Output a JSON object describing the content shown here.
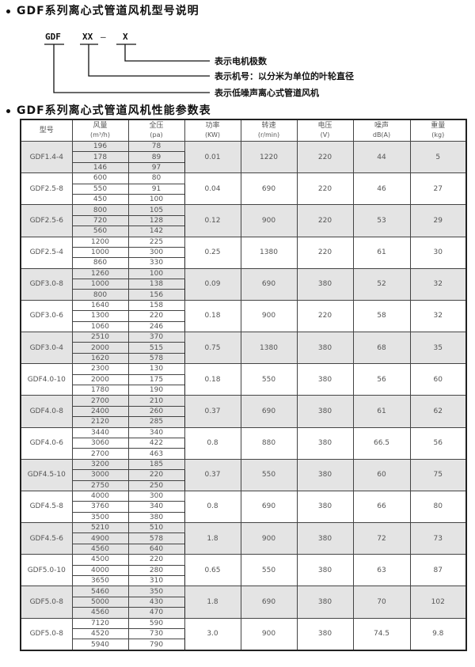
{
  "model_explanation": {
    "title": "GDF系列离心式管道风机型号说明",
    "code_parts": [
      "GDF",
      "XX",
      "—",
      "X"
    ],
    "labels": [
      "表示电机极数",
      "表示机号：以分米为单位的叶轮直径",
      "表示低噪声离心式管道风机"
    ]
  },
  "performance_table": {
    "title": "GDF系列离心式管道风机性能参数表",
    "headers": [
      {
        "name": "型号",
        "unit": ""
      },
      {
        "name": "风量",
        "unit": "(m³/h)"
      },
      {
        "name": "全压",
        "unit": "(pa)"
      },
      {
        "name": "功率",
        "unit": "(KW)"
      },
      {
        "name": "转速",
        "unit": "(r/min)"
      },
      {
        "name": "电压",
        "unit": "(V)"
      },
      {
        "name": "噪声",
        "unit": "dB(A)"
      },
      {
        "name": "重量",
        "unit": "(kg)"
      }
    ],
    "rows": [
      {
        "model": "GDF1.4-4",
        "flow": [
          "196",
          "178",
          "146"
        ],
        "pressure": [
          "78",
          "89",
          "97"
        ],
        "power": "0.01",
        "speed": "1220",
        "voltage": "220",
        "noise": "44",
        "weight": "5"
      },
      {
        "model": "GDF2.5-8",
        "flow": [
          "600",
          "550",
          "450"
        ],
        "pressure": [
          "80",
          "91",
          "100"
        ],
        "power": "0.04",
        "speed": "690",
        "voltage": "220",
        "noise": "46",
        "weight": "27"
      },
      {
        "model": "GDF2.5-6",
        "flow": [
          "800",
          "720",
          "560"
        ],
        "pressure": [
          "105",
          "128",
          "142"
        ],
        "power": "0.12",
        "speed": "900",
        "voltage": "220",
        "noise": "53",
        "weight": "29"
      },
      {
        "model": "GDF2.5-4",
        "flow": [
          "1200",
          "1000",
          "860"
        ],
        "pressure": [
          "225",
          "300",
          "330"
        ],
        "power": "0.25",
        "speed": "1380",
        "voltage": "220",
        "noise": "61",
        "weight": "30"
      },
      {
        "model": "GDF3.0-8",
        "flow": [
          "1260",
          "1000",
          "800"
        ],
        "pressure": [
          "100",
          "138",
          "156"
        ],
        "power": "0.09",
        "speed": "690",
        "voltage": "380",
        "noise": "52",
        "weight": "32"
      },
      {
        "model": "GDF3.0-6",
        "flow": [
          "1640",
          "1300",
          "1060"
        ],
        "pressure": [
          "158",
          "220",
          "246"
        ],
        "power": "0.18",
        "speed": "900",
        "voltage": "220",
        "noise": "58",
        "weight": "32"
      },
      {
        "model": "GDF3.0-4",
        "flow": [
          "2510",
          "2000",
          "1620"
        ],
        "pressure": [
          "370",
          "515",
          "578"
        ],
        "power": "0.75",
        "speed": "1380",
        "voltage": "380",
        "noise": "68",
        "weight": "35"
      },
      {
        "model": "GDF4.0-10",
        "flow": [
          "2300",
          "2000",
          "1780"
        ],
        "pressure": [
          "130",
          "175",
          "190"
        ],
        "power": "0.18",
        "speed": "550",
        "voltage": "380",
        "noise": "56",
        "weight": "60"
      },
      {
        "model": "GDF4.0-8",
        "flow": [
          "2700",
          "2400",
          "2120"
        ],
        "pressure": [
          "210",
          "260",
          "285"
        ],
        "power": "0.37",
        "speed": "690",
        "voltage": "380",
        "noise": "61",
        "weight": "62"
      },
      {
        "model": "GDF4.0-6",
        "flow": [
          "3440",
          "3060",
          "2700"
        ],
        "pressure": [
          "340",
          "422",
          "463"
        ],
        "power": "0.8",
        "speed": "880",
        "voltage": "380",
        "noise": "66.5",
        "weight": "56"
      },
      {
        "model": "GDF4.5-10",
        "flow": [
          "3200",
          "3000",
          "2750"
        ],
        "pressure": [
          "185",
          "220",
          "250"
        ],
        "power": "0.37",
        "speed": "550",
        "voltage": "380",
        "noise": "60",
        "weight": "75"
      },
      {
        "model": "GDF4.5-8",
        "flow": [
          "4000",
          "3760",
          "3500"
        ],
        "pressure": [
          "300",
          "340",
          "380"
        ],
        "power": "0.8",
        "speed": "690",
        "voltage": "380",
        "noise": "66",
        "weight": "80"
      },
      {
        "model": "GDF4.5-6",
        "flow": [
          "5210",
          "4900",
          "4560"
        ],
        "pressure": [
          "510",
          "578",
          "640"
        ],
        "power": "1.8",
        "speed": "900",
        "voltage": "380",
        "noise": "72",
        "weight": "73"
      },
      {
        "model": "GDF5.0-10",
        "flow": [
          "4500",
          "4000",
          "3650"
        ],
        "pressure": [
          "220",
          "280",
          "310"
        ],
        "power": "0.65",
        "speed": "550",
        "voltage": "380",
        "noise": "63",
        "weight": "87"
      },
      {
        "model": "GDF5.0-8",
        "flow": [
          "5460",
          "5000",
          "4560"
        ],
        "pressure": [
          "350",
          "430",
          "470"
        ],
        "power": "1.8",
        "speed": "690",
        "voltage": "380",
        "noise": "70",
        "weight": "102"
      },
      {
        "model": "GDF5.0-8",
        "flow": [
          "7120",
          "4520",
          "5940"
        ],
        "pressure": [
          "590",
          "730",
          "790"
        ],
        "power": "3.0",
        "speed": "900",
        "voltage": "380",
        "noise": "74.5",
        "weight": "9.8"
      }
    ],
    "shade_color": "#e4e4e4"
  }
}
